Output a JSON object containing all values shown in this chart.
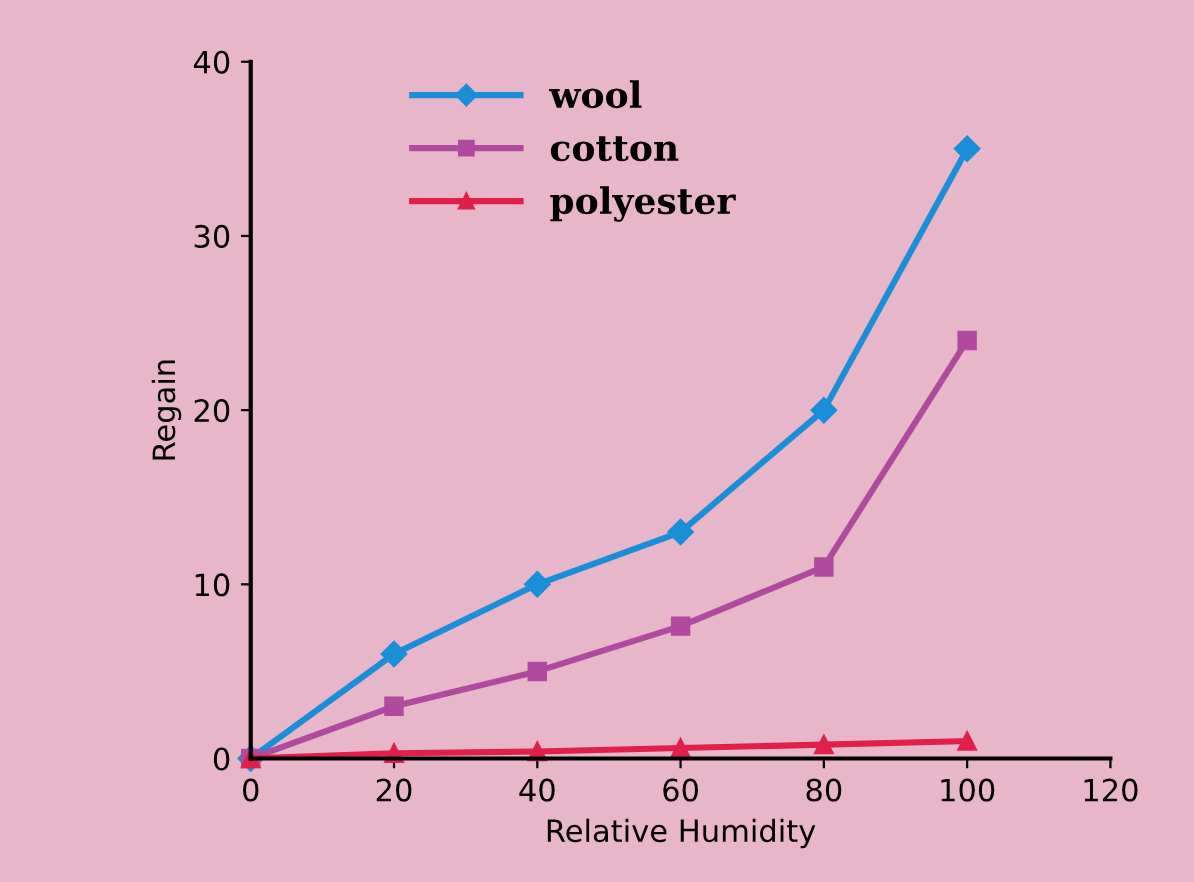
{
  "chart_data": {
    "type": "line",
    "xlabel": "Relative Humidity",
    "ylabel": "Regain",
    "x": [
      0,
      20,
      40,
      60,
      80,
      100
    ],
    "series": [
      {
        "name": "wool",
        "color": "#1a8fd8",
        "marker": "diamond",
        "values": [
          0,
          6,
          10,
          13,
          20,
          35
        ]
      },
      {
        "name": "cotton",
        "color": "#b04a9e",
        "marker": "square",
        "values": [
          0,
          3,
          5,
          7.6,
          11,
          24
        ]
      },
      {
        "name": "polyester",
        "color": "#e0204a",
        "marker": "triangle",
        "values": [
          0,
          0.3,
          0.4,
          0.6,
          0.8,
          1
        ]
      }
    ],
    "xlim": [
      0,
      120
    ],
    "xticks": [
      0,
      20,
      40,
      60,
      80,
      100,
      120
    ],
    "ylim": [
      0,
      40
    ],
    "yticks": [
      0,
      10,
      20,
      30,
      40
    ],
    "grid": false,
    "legend": "top left",
    "line_style": "solid"
  }
}
